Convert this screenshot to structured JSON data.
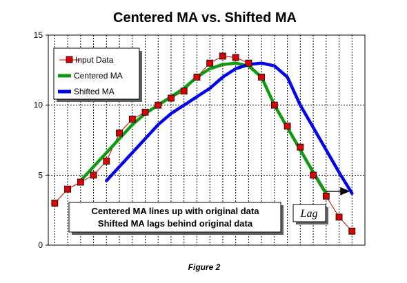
{
  "chart_data": {
    "type": "line",
    "title": "Centered MA vs. Shifted MA",
    "caption": "Figure 2",
    "ylim": [
      0,
      15
    ],
    "yticks": [
      0,
      5,
      10,
      15
    ],
    "grid": "dotted",
    "legend_position": "top-left",
    "series": [
      {
        "name": "Input Data",
        "color": "#cc0000",
        "marker": "square",
        "x": [
          1,
          2,
          3,
          4,
          5,
          6,
          7,
          8,
          9,
          10,
          11,
          12,
          13,
          14,
          15,
          16,
          17,
          18,
          19,
          20,
          21,
          22,
          23,
          24
        ],
        "y": [
          3,
          4,
          4.5,
          5,
          6,
          8,
          9,
          9.5,
          10,
          10.5,
          11,
          12,
          13,
          13.5,
          13.4,
          13,
          12,
          10,
          8.5,
          7,
          5,
          3.5,
          2,
          1
        ]
      },
      {
        "name": "Centered MA",
        "color": "#109a10",
        "x": [
          3,
          4,
          5,
          6,
          7,
          8,
          9,
          10,
          11,
          12,
          13,
          14,
          15,
          16,
          17,
          18,
          19,
          20,
          21,
          22
        ],
        "y": [
          4.6,
          5.6,
          6.6,
          7.6,
          8.6,
          9.4,
          10,
          10.6,
          11.2,
          12,
          12.6,
          12.9,
          13,
          12.8,
          12,
          10,
          8.4,
          6.8,
          5.2,
          3.7
        ]
      },
      {
        "name": "Shifted MA",
        "color": "#0000ee",
        "x": [
          5,
          6,
          7,
          8,
          9,
          10,
          11,
          12,
          13,
          14,
          15,
          16,
          17,
          18,
          19,
          20,
          21,
          22,
          23,
          24
        ],
        "y": [
          4.6,
          5.6,
          6.6,
          7.6,
          8.6,
          9.4,
          10,
          10.6,
          11.2,
          12,
          12.6,
          12.9,
          13,
          12.8,
          12,
          10,
          8.4,
          6.8,
          5.2,
          3.7
        ]
      }
    ],
    "annotations": {
      "note_line1": "Centered MA lines up with original data",
      "note_line2": "Shifted MA lags behind original data",
      "lag_label": "Lag"
    }
  }
}
